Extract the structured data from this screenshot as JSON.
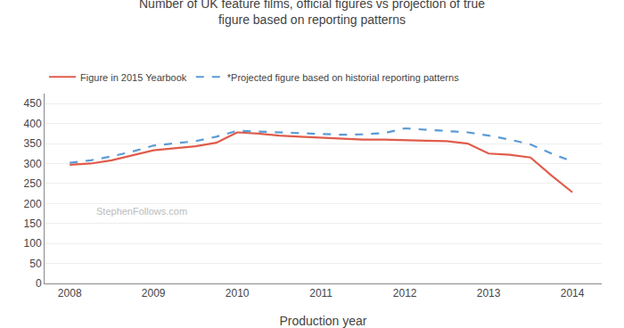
{
  "chart_data": {
    "type": "line",
    "title": "Number of UK feature films, official figures vs projection of true\nfigure based on reporting patterns",
    "x_label": "Production year",
    "annotations": [
      "StephenFollows.com"
    ],
    "x": [
      2008,
      2008.25,
      2008.5,
      2008.75,
      2009,
      2009.25,
      2009.5,
      2009.75,
      2010,
      2010.25,
      2010.5,
      2010.75,
      2011,
      2011.25,
      2011.5,
      2011.75,
      2012,
      2012.25,
      2012.5,
      2012.75,
      2013,
      2013.25,
      2013.5,
      2013.75,
      2014
    ],
    "series": [
      {
        "name": "Figure in 2015 Yearbook",
        "color": "#e05c4b",
        "line_style": "solid",
        "values": [
          297,
          300,
          308,
          320,
          333,
          338,
          343,
          352,
          378,
          375,
          370,
          367,
          365,
          362,
          360,
          360,
          358,
          357,
          356,
          350,
          325,
          322,
          315,
          270,
          228
        ]
      },
      {
        "name": "*Projected figure based on historial reporting patterns",
        "color": "#5b9bd5",
        "line_style": "dashed",
        "values": [
          302,
          308,
          318,
          330,
          345,
          350,
          356,
          367,
          382,
          380,
          378,
          375,
          373,
          372,
          373,
          376,
          388,
          385,
          382,
          378,
          370,
          360,
          348,
          325,
          305
        ]
      }
    ],
    "xlim": [
      2007.7,
      2014.35
    ],
    "xticks": [
      2008,
      2009,
      2010,
      2011,
      2012,
      2013,
      2014
    ],
    "ylim": [
      0,
      475
    ],
    "yticks": [
      0,
      50,
      100,
      150,
      200,
      250,
      300,
      350,
      400,
      450
    ],
    "grid": true,
    "legend": "top"
  }
}
